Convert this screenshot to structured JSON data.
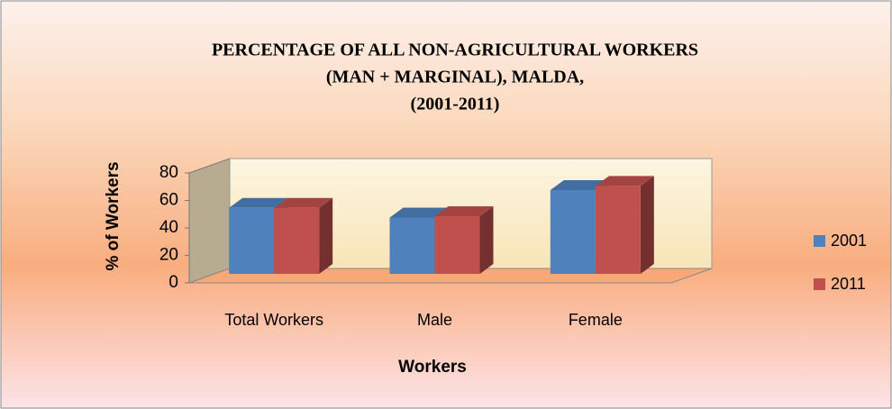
{
  "chart_data": {
    "type": "bar3d",
    "title": [
      "PERCENTAGE OF ALL NON-AGRICULTURAL WORKERS",
      "(MAN + MARGINAL), MALDA,",
      "(2001-2011)"
    ],
    "x_label": "Workers",
    "y_label": "% of Workers",
    "categories": [
      "Total Workers",
      "Male",
      "Female"
    ],
    "series": [
      {
        "name": "2001",
        "color": "#4f81bd",
        "values": [
          48,
          41,
          61
        ]
      },
      {
        "name": "2011",
        "color": "#c0504d",
        "values": [
          48,
          42,
          64
        ]
      }
    ],
    "ylim": [
      0,
      80
    ],
    "yticks": [
      0,
      20,
      40,
      60,
      80
    ],
    "legend": "right"
  }
}
